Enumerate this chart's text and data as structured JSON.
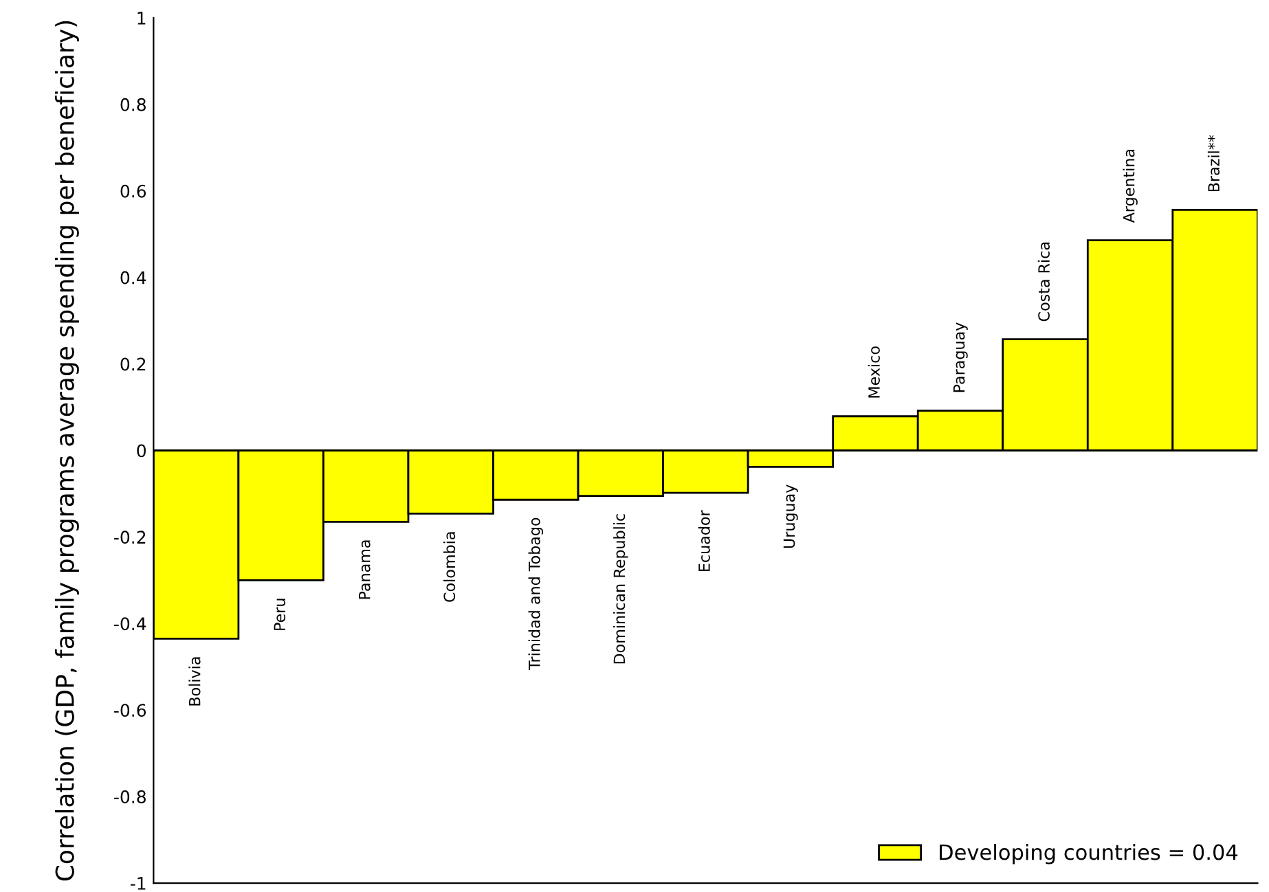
{
  "chart_data": {
    "type": "bar",
    "ylabel": "Correlation (GDP, family programs average spending per beneficiary)",
    "categories": [
      "Bolivia",
      "Peru",
      "Panama",
      "Colombia",
      "Trinidad and Tobago",
      "Dominican Republic",
      "Ecuador",
      "Uruguay",
      "Mexico",
      "Paraguay",
      "Costa Rica",
      "Argentina",
      "Brazil**"
    ],
    "series": [
      {
        "name": "Developing countries = 0.04",
        "color": "#ffff00",
        "values": [
          -0.435,
          -0.3,
          -0.165,
          -0.146,
          -0.114,
          -0.105,
          -0.098,
          -0.038,
          0.079,
          0.092,
          0.257,
          0.486,
          0.556
        ]
      }
    ],
    "ylim": [
      -1,
      1
    ],
    "yticks": [
      -1,
      -0.8,
      -0.6,
      -0.4,
      -0.2,
      0,
      0.2,
      0.4,
      0.6,
      0.8,
      1
    ],
    "grid": false,
    "legend": "bottom right",
    "tick_labels": "y"
  }
}
